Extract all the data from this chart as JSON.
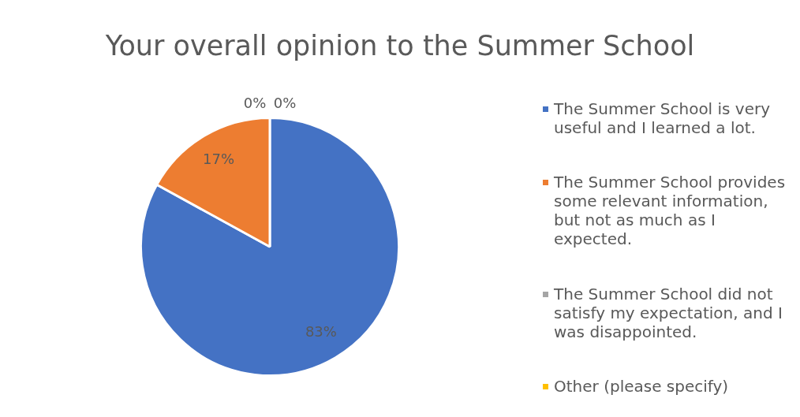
{
  "chart_data": {
    "type": "pie",
    "title": "Your overall opinion to the Summer School",
    "categories": [
      "The Summer School is very useful and I learned a lot.",
      "The Summer School provides some relevant information, but not as much as I expected.",
      "The Summer School did not satisfy my expectation, and I was disappointed.",
      "Other (please specify)"
    ],
    "values": [
      83,
      17,
      0,
      0
    ],
    "colors": [
      "#4472c4",
      "#ed7d31",
      "#a5a5a5",
      "#ffc000"
    ],
    "value_labels": [
      "83%",
      "17%",
      "0%",
      "0%"
    ],
    "legend": "right"
  }
}
